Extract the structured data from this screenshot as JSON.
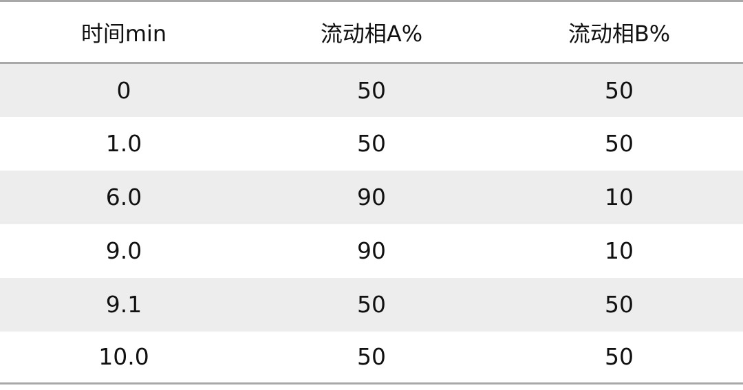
{
  "table": {
    "headers": [
      "时间min",
      "流动相A%",
      "流动相B%"
    ],
    "rows": [
      [
        "0",
        "50",
        "50"
      ],
      [
        "1.0",
        "50",
        "50"
      ],
      [
        "6.0",
        "90",
        "10"
      ],
      [
        "9.0",
        "90",
        "10"
      ],
      [
        "9.1",
        "50",
        "50"
      ],
      [
        "10.0",
        "50",
        "50"
      ]
    ],
    "colors": {
      "stripe": "#ededed",
      "border": "#a8a8a8"
    }
  }
}
